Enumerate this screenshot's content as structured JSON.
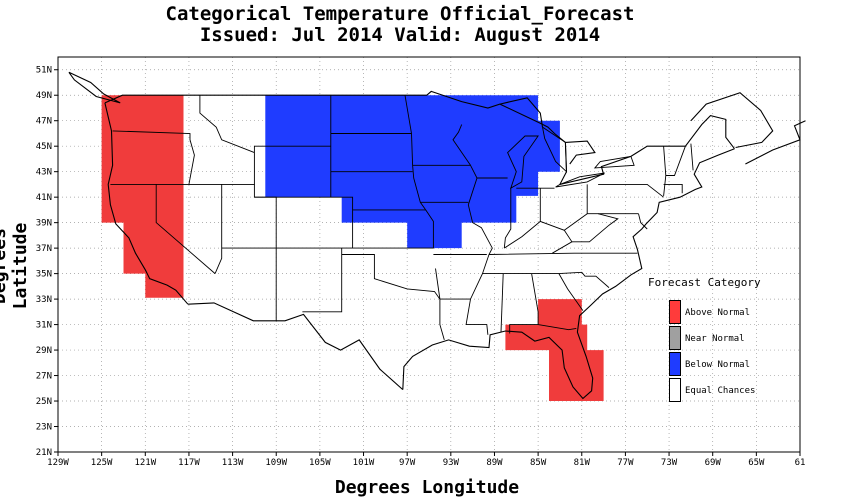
{
  "title": {
    "line1": "Categorical Temperature Official_Forecast",
    "line2": "Issued: Jul 2014 Valid: August 2014"
  },
  "axes": {
    "xlabel": "Degrees Longitude",
    "ylabel": "Degrees Latitude",
    "x_ticks": [
      "129W",
      "125W",
      "121W",
      "117W",
      "113W",
      "109W",
      "105W",
      "101W",
      "97W",
      "93W",
      "89W",
      "85W",
      "81W",
      "77W",
      "73W",
      "69W",
      "65W",
      "61"
    ],
    "y_ticks": [
      "21N",
      "23N",
      "25N",
      "27N",
      "29N",
      "31N",
      "33N",
      "35N",
      "37N",
      "39N",
      "41N",
      "43N",
      "45N",
      "47N",
      "49N",
      "51N"
    ],
    "lon_range": [
      -129,
      -61
    ],
    "lat_range": [
      21,
      52
    ],
    "grid": true,
    "grid_style": "dotted"
  },
  "legend": {
    "title": "Forecast Category",
    "placement": "right",
    "items": [
      {
        "label": "Above Normal",
        "color": "#ff3b3b"
      },
      {
        "label": "Near Normal",
        "color": "#a0a0a0"
      },
      {
        "label": "Below Normal",
        "color": "#1f3cff"
      },
      {
        "label": "Equal Chances",
        "color": "#ffffff"
      }
    ]
  },
  "colors": {
    "above": "#f03c3c",
    "below": "#1f3cff",
    "line": "#000000"
  },
  "forecast_regions": [
    {
      "category": "Above Normal",
      "area": "West Coast / Great Basin (WA, OR, CA, NV, western ID)"
    },
    {
      "category": "Below Normal",
      "area": "Northern Plains, Upper Midwest, Great Lakes"
    },
    {
      "category": "Above Normal",
      "area": "Southeast (southern GA, FL)"
    }
  ]
}
